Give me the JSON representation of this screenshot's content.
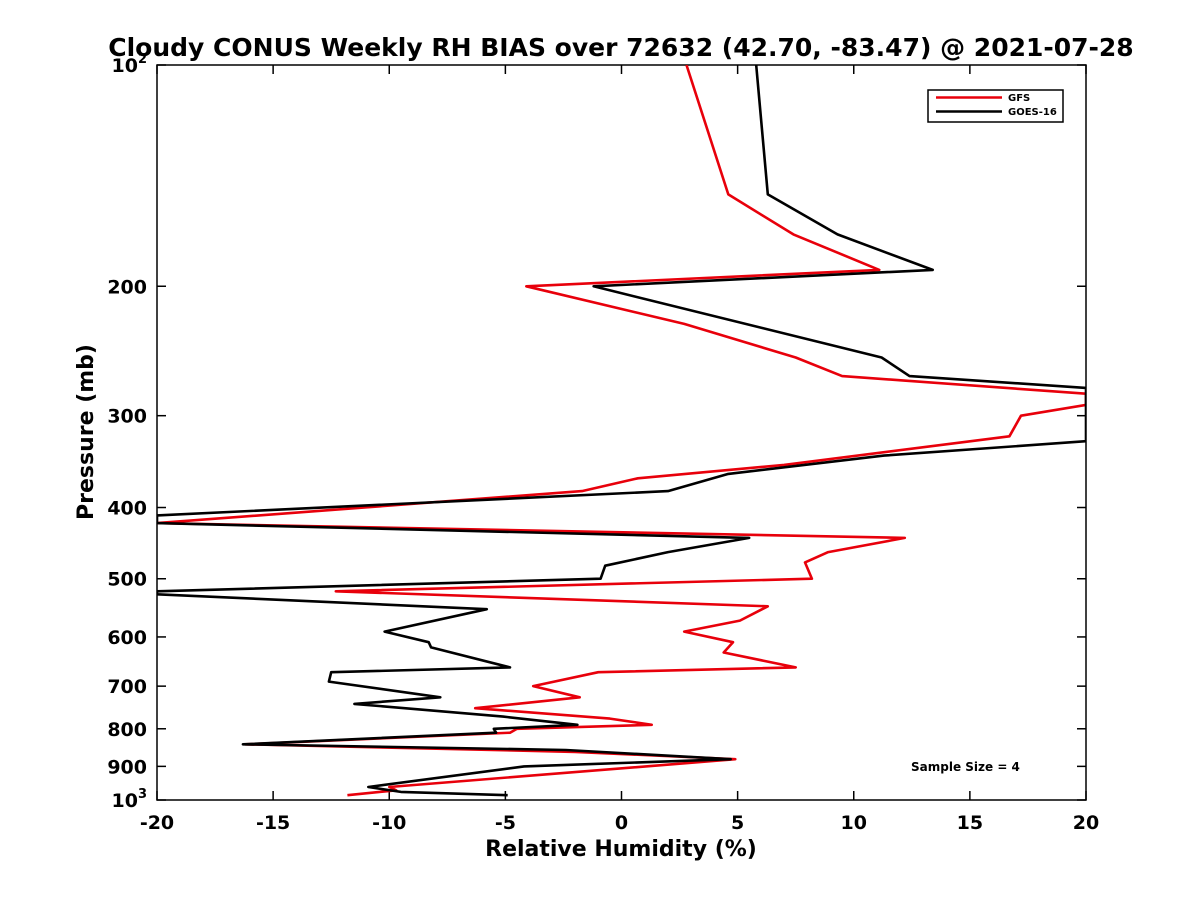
{
  "chart_data": {
    "type": "line",
    "title": "Cloudy CONUS Weekly RH BIAS over 72632 (42.70, -83.47) @ 2021-07-28",
    "xlabel": "Relative Humidity (%)",
    "ylabel": "Pressure (mb)",
    "xlim": [
      -20,
      20
    ],
    "ylim": [
      100,
      1000
    ],
    "y_scale": "log",
    "y_reversed": true,
    "x_ticks": [
      "-20",
      "-15",
      "-10",
      "-5",
      "0",
      "5",
      "10",
      "15",
      "20"
    ],
    "x_tick_values": [
      -20,
      -15,
      -10,
      -5,
      0,
      5,
      10,
      15,
      20
    ],
    "y_ticks": [
      {
        "value": 100,
        "base": "10",
        "exp": "2"
      },
      {
        "value": 200,
        "label": "200"
      },
      {
        "value": 300,
        "label": "300"
      },
      {
        "value": 400,
        "label": "400"
      },
      {
        "value": 500,
        "label": "500"
      },
      {
        "value": 600,
        "label": "600"
      },
      {
        "value": 700,
        "label": "700"
      },
      {
        "value": 800,
        "label": "800"
      },
      {
        "value": 900,
        "label": "900"
      },
      {
        "value": 1000,
        "base": "10",
        "exp": "3"
      }
    ],
    "grid": false,
    "legend_position": "top-right",
    "annotation": "Sample Size = 4",
    "series": [
      {
        "name": "GFS",
        "color": "#e8000b",
        "points": [
          {
            "x": 2.8,
            "y": 100
          },
          {
            "x": 4.6,
            "y": 150
          },
          {
            "x": 7.4,
            "y": 170
          },
          {
            "x": 11.1,
            "y": 190
          },
          {
            "x": -4.1,
            "y": 200
          },
          {
            "x": 2.7,
            "y": 225
          },
          {
            "x": 7.5,
            "y": 250
          },
          {
            "x": 9.5,
            "y": 265
          },
          {
            "x": 20.0,
            "y": 280
          },
          {
            "x": 20.0,
            "y": 290
          },
          {
            "x": 17.2,
            "y": 300
          },
          {
            "x": 16.7,
            "y": 320
          },
          {
            "x": 7.0,
            "y": 350
          },
          {
            "x": 0.7,
            "y": 365
          },
          {
            "x": -1.7,
            "y": 380
          },
          {
            "x": -20.0,
            "y": 420
          },
          {
            "x": 12.2,
            "y": 440
          },
          {
            "x": 8.9,
            "y": 460
          },
          {
            "x": 7.9,
            "y": 475
          },
          {
            "x": 8.2,
            "y": 500
          },
          {
            "x": -12.3,
            "y": 520
          },
          {
            "x": 6.3,
            "y": 545
          },
          {
            "x": 5.1,
            "y": 570
          },
          {
            "x": 2.7,
            "y": 590
          },
          {
            "x": 4.8,
            "y": 610
          },
          {
            "x": 4.4,
            "y": 630
          },
          {
            "x": 7.5,
            "y": 660
          },
          {
            "x": -1.0,
            "y": 670
          },
          {
            "x": -3.8,
            "y": 700
          },
          {
            "x": -1.8,
            "y": 725
          },
          {
            "x": -6.3,
            "y": 750
          },
          {
            "x": -0.5,
            "y": 775
          },
          {
            "x": 1.3,
            "y": 790
          },
          {
            "x": -4.5,
            "y": 800
          },
          {
            "x": -4.8,
            "y": 810
          },
          {
            "x": -16.2,
            "y": 840
          },
          {
            "x": -2.0,
            "y": 860
          },
          {
            "x": 4.9,
            "y": 880
          },
          {
            "x": -10.0,
            "y": 960
          },
          {
            "x": -9.7,
            "y": 970
          },
          {
            "x": -11.8,
            "y": 985
          }
        ]
      },
      {
        "name": "GOES-16",
        "color": "#000000",
        "points": [
          {
            "x": 5.8,
            "y": 100
          },
          {
            "x": 6.3,
            "y": 150
          },
          {
            "x": 9.3,
            "y": 170
          },
          {
            "x": 13.4,
            "y": 190
          },
          {
            "x": -1.2,
            "y": 200
          },
          {
            "x": 11.2,
            "y": 250
          },
          {
            "x": 12.4,
            "y": 265
          },
          {
            "x": 20.0,
            "y": 275
          },
          {
            "x": 20.0,
            "y": 325
          },
          {
            "x": 11.3,
            "y": 340
          },
          {
            "x": 4.6,
            "y": 360
          },
          {
            "x": 2.0,
            "y": 380
          },
          {
            "x": -20.0,
            "y": 410
          },
          {
            "x": -20.0,
            "y": 420
          },
          {
            "x": 5.5,
            "y": 440
          },
          {
            "x": 2.0,
            "y": 460
          },
          {
            "x": -0.7,
            "y": 480
          },
          {
            "x": -0.9,
            "y": 500
          },
          {
            "x": -20.0,
            "y": 520
          },
          {
            "x": -20.0,
            "y": 525
          },
          {
            "x": -5.8,
            "y": 550
          },
          {
            "x": -10.2,
            "y": 590
          },
          {
            "x": -8.3,
            "y": 610
          },
          {
            "x": -8.2,
            "y": 620
          },
          {
            "x": -4.8,
            "y": 660
          },
          {
            "x": -12.5,
            "y": 670
          },
          {
            "x": -12.6,
            "y": 690
          },
          {
            "x": -7.8,
            "y": 725
          },
          {
            "x": -11.5,
            "y": 740
          },
          {
            "x": -5.1,
            "y": 770
          },
          {
            "x": -1.9,
            "y": 790
          },
          {
            "x": -5.5,
            "y": 800
          },
          {
            "x": -5.4,
            "y": 810
          },
          {
            "x": -16.3,
            "y": 840
          },
          {
            "x": -2.4,
            "y": 855
          },
          {
            "x": 4.7,
            "y": 880
          },
          {
            "x": -4.2,
            "y": 900
          },
          {
            "x": -10.9,
            "y": 960
          },
          {
            "x": -9.5,
            "y": 975
          },
          {
            "x": -4.9,
            "y": 985
          }
        ]
      }
    ]
  }
}
